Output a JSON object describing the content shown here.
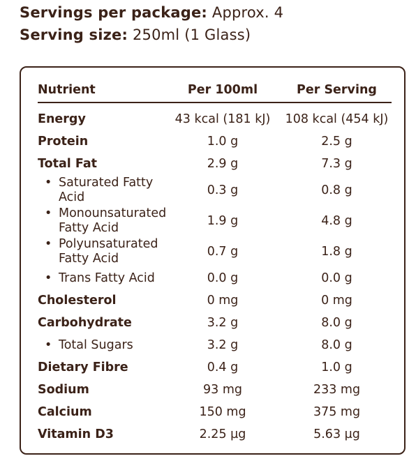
{
  "serving": {
    "per_package_label": "Servings per package:",
    "per_package_value": "Approx. 4",
    "size_label": "Serving size:",
    "size_value": "250ml (1 Glass)"
  },
  "table": {
    "headers": {
      "nutrient": "Nutrient",
      "per100": "Per 100ml",
      "perServing": "Per Serving"
    },
    "rows": [
      {
        "name": "Energy",
        "per100": "43 kcal (181 kJ)",
        "perServing": "108 kcal (454 kJ)"
      },
      {
        "name": "Protein",
        "per100": "1.0 g",
        "perServing": "2.5 g"
      },
      {
        "name": "Total Fat",
        "per100": "2.9 g",
        "perServing": "7.3 g"
      },
      {
        "name": "Saturated Fatty Acid",
        "per100": "0.3 g",
        "perServing": "0.8 g"
      },
      {
        "name": "Monounsaturated Fatty Acid",
        "per100": "1.9 g",
        "perServing": "4.8 g"
      },
      {
        "name": "Polyunsaturated Fatty Acid",
        "per100": "0.7 g",
        "perServing": "1.8 g"
      },
      {
        "name": "Trans Fatty Acid",
        "per100": "0.0 g",
        "perServing": "0.0 g"
      },
      {
        "name": "Cholesterol",
        "per100": "0 mg",
        "perServing": "0 mg"
      },
      {
        "name": "Carbohydrate",
        "per100": "3.2 g",
        "perServing": "8.0 g"
      },
      {
        "name": "Total Sugars",
        "per100": "3.2 g",
        "perServing": "8.0 g"
      },
      {
        "name": "Dietary Fibre",
        "per100": "0.4 g",
        "perServing": "1.0 g"
      },
      {
        "name": "Sodium",
        "per100": "93 mg",
        "perServing": "233 mg"
      },
      {
        "name": "Calcium",
        "per100": "150 mg",
        "perServing": "375 mg"
      },
      {
        "name": "Vitamin D3",
        "per100": "2.25 µg",
        "perServing": "5.63 µg"
      }
    ]
  },
  "colors": {
    "text": "#3b2218",
    "border": "#3b2218"
  }
}
